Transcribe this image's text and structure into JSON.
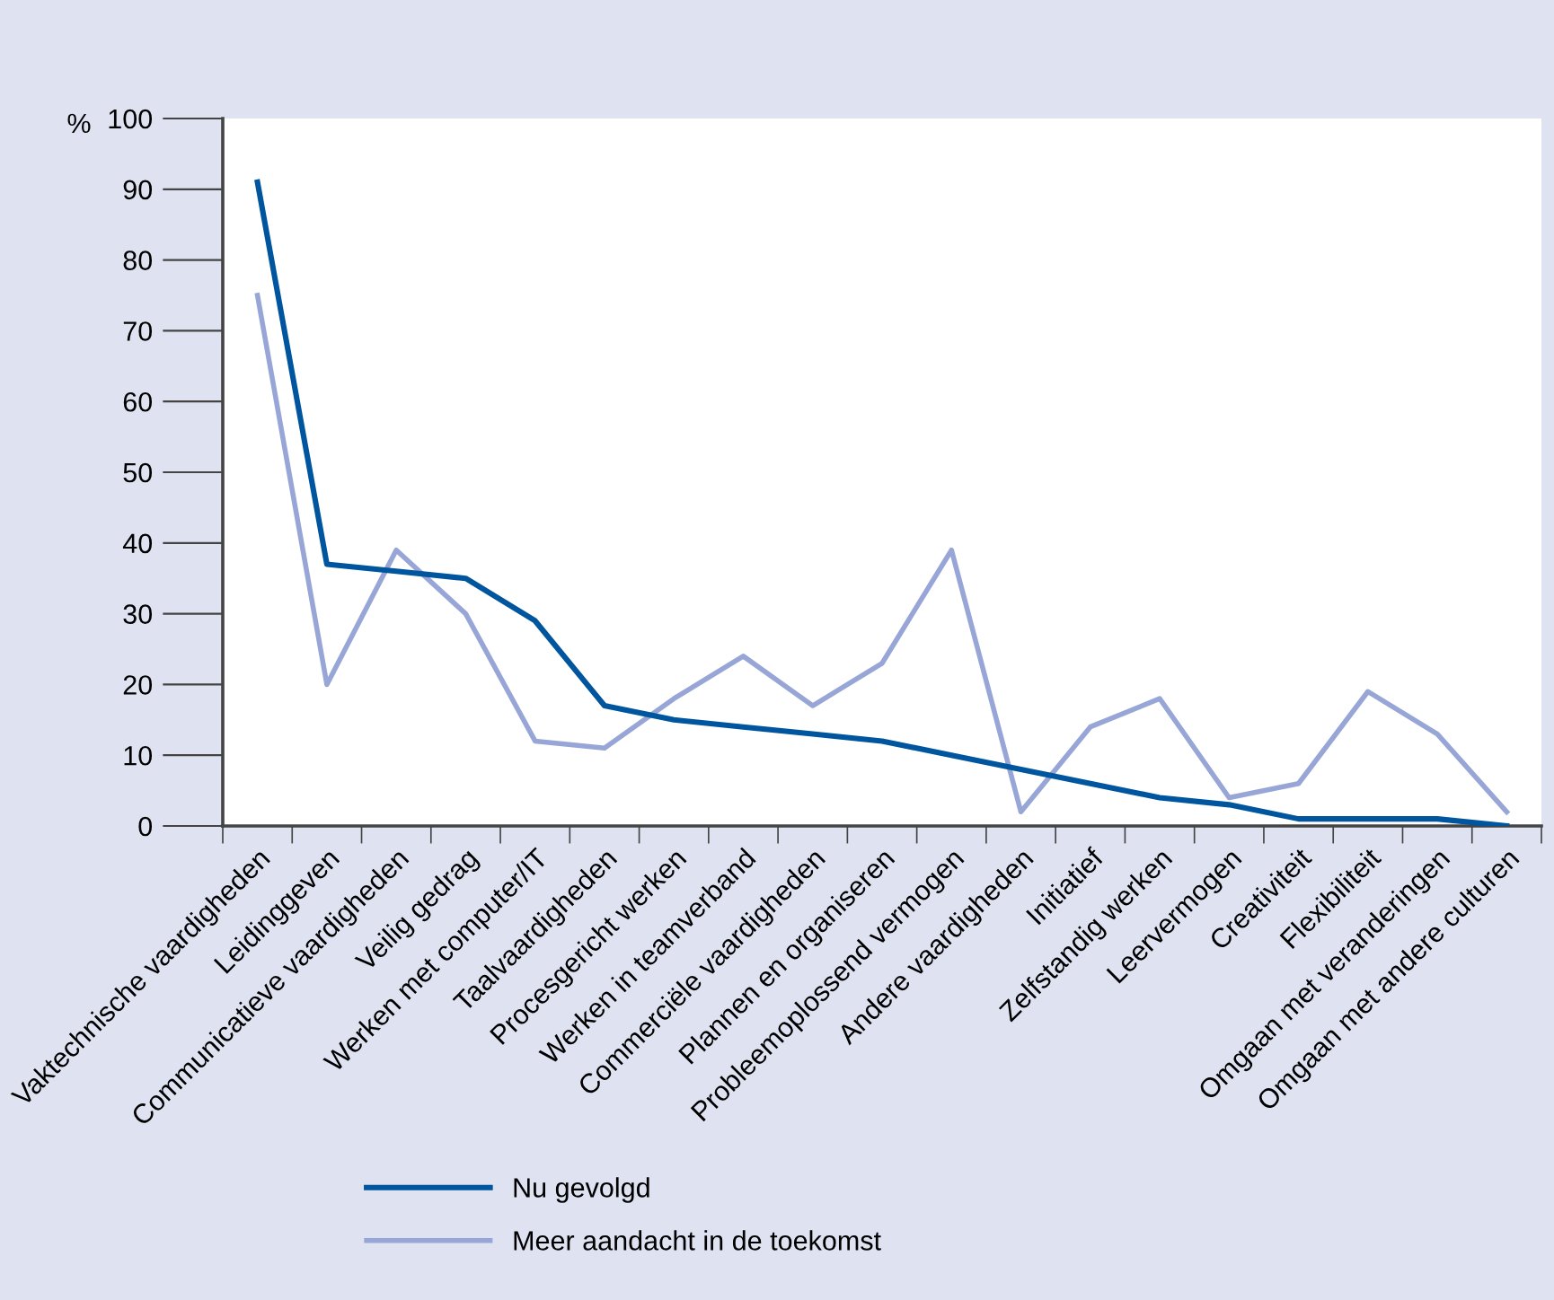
{
  "chart_data": {
    "type": "line",
    "ylabel": "%",
    "categories": [
      "Vaktechnische vaardigheden",
      "Leidinggeven",
      "Communicatieve vaardigheden",
      "Veilig gedrag",
      "Werken met computer/IT",
      "Taalvaardigheden",
      "Procesgericht werken",
      "Werken in teamverband",
      "Commerciële vaardigheden",
      "Plannen en organiseren",
      "Probleemoplossend vermogen",
      "Andere vaardigheden",
      "Initiatief",
      "Zelfstandig werken",
      "Leervermogen",
      "Creativiteit",
      "Flexibiliteit",
      "Omgaan met veranderingen",
      "Omgaan met andere culturen"
    ],
    "series": [
      {
        "name": "Nu gevolgd",
        "color": "#00569e",
        "values": [
          91,
          37,
          36,
          35,
          29,
          17,
          15,
          14,
          13,
          12,
          10,
          8,
          6,
          4,
          3,
          1,
          1,
          1,
          0
        ]
      },
      {
        "name": "Meer aandacht in de toekomst",
        "color": "#97a6d6",
        "values": [
          75,
          20,
          39,
          30,
          12,
          11,
          18,
          24,
          17,
          23,
          39,
          2,
          14,
          18,
          4,
          6,
          19,
          13,
          2
        ]
      }
    ],
    "ylim": [
      0,
      100
    ],
    "yticks": [
      0,
      10,
      20,
      30,
      40,
      50,
      60,
      70,
      80,
      90,
      100
    ],
    "grid": false,
    "legend": "bottom left",
    "marker": "none",
    "line_style": "solid"
  }
}
